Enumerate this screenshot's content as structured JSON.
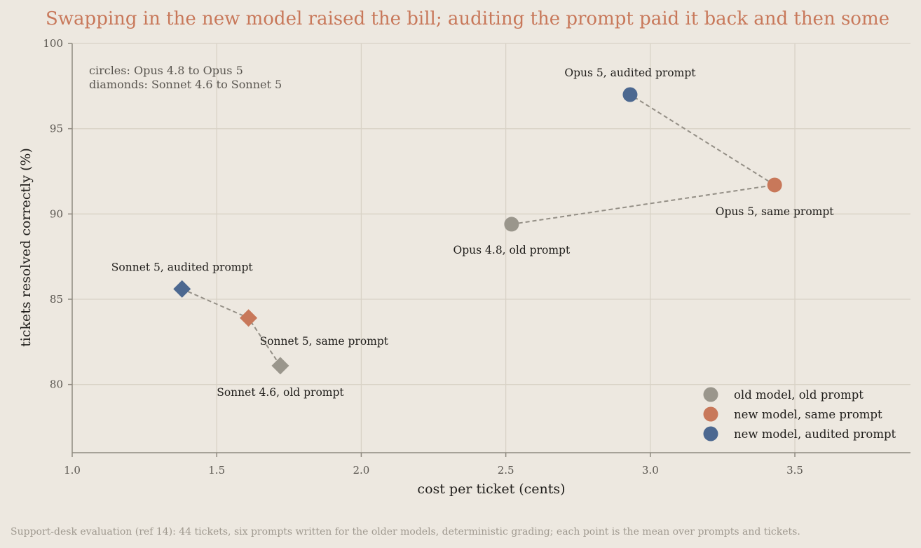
{
  "chart_data": {
    "type": "scatter",
    "title": "Swapping in the new model raised the bill; auditing the prompt paid it back and then some",
    "xlabel": "cost per ticket (cents)",
    "ylabel": "tickets resolved correctly (%)",
    "xlim": [
      1.0,
      3.9
    ],
    "ylim": [
      76,
      100
    ],
    "xticks": [
      1.0,
      1.5,
      2.0,
      2.5,
      3.0,
      3.5
    ],
    "xtick_labels": [
      "1.0",
      "1.5",
      "2.0",
      "2.5",
      "3.0",
      "3.5"
    ],
    "yticks": [
      80,
      85,
      90,
      95,
      100
    ],
    "ytick_labels": [
      "80",
      "85",
      "90",
      "95",
      "100"
    ],
    "grid": true,
    "legend_position": "bottom-right",
    "colors": {
      "old": "#9a968c",
      "same": "#c8785a",
      "audited": "#4c6890",
      "connector": "#948f86"
    },
    "note_lines": [
      "circles: Opus 4.8 to Opus 5",
      "diamonds: Sonnet 4.6 to Sonnet 5"
    ],
    "legend": [
      {
        "label": "old model, old prompt",
        "category": "old"
      },
      {
        "label": "new model, same prompt",
        "category": "same"
      },
      {
        "label": "new model, audited prompt",
        "category": "audited"
      }
    ],
    "series": [
      {
        "marker": "circle",
        "points": [
          {
            "x": 2.52,
            "y": 89.4,
            "category": "old",
            "label": "Opus 4.8, old prompt"
          },
          {
            "x": 3.43,
            "y": 91.7,
            "category": "same",
            "label": "Opus 5, same prompt"
          },
          {
            "x": 2.93,
            "y": 97.0,
            "category": "audited",
            "label": "Opus 5, audited prompt"
          }
        ]
      },
      {
        "marker": "diamond",
        "points": [
          {
            "x": 1.72,
            "y": 81.1,
            "category": "old",
            "label": "Sonnet 4.6, old prompt"
          },
          {
            "x": 1.61,
            "y": 83.9,
            "category": "same",
            "label": "Sonnet 5, same prompt"
          },
          {
            "x": 1.38,
            "y": 85.6,
            "category": "audited",
            "label": "Sonnet 5, audited prompt"
          }
        ]
      }
    ],
    "footnote": "Support-desk evaluation (ref 14): 44 tickets, six prompts written for the older models, deterministic grading; each point is the mean over prompts and tickets."
  }
}
